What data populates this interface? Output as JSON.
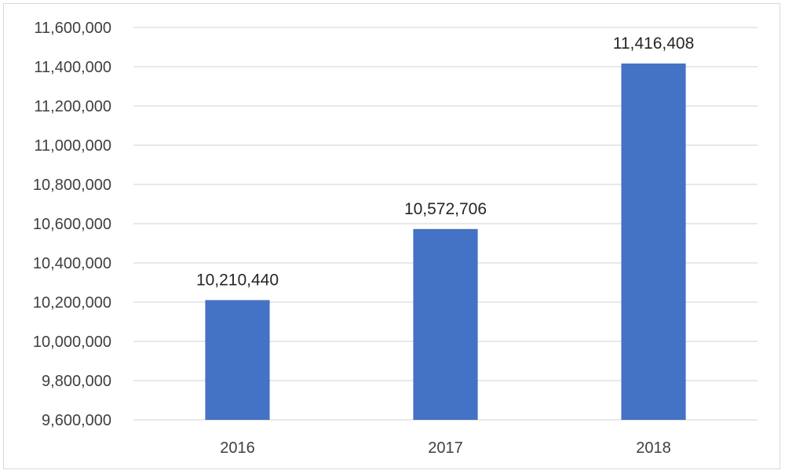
{
  "chart_data": {
    "type": "bar",
    "categories": [
      "2016",
      "2017",
      "2018"
    ],
    "values": [
      10210440,
      10572706,
      11416408
    ],
    "data_labels": [
      "10,210,440",
      "10,572,706",
      "11,416,408"
    ],
    "ylim": [
      9600000,
      11600000
    ],
    "y_ticks": [
      9600000,
      9800000,
      10000000,
      10200000,
      10400000,
      10600000,
      10800000,
      11000000,
      11200000,
      11400000,
      11600000
    ],
    "y_tick_labels": [
      "9,600,000",
      "9,800,000",
      "10,000,000",
      "10,200,000",
      "10,400,000",
      "10,600,000",
      "10,800,000",
      "11,000,000",
      "11,200,000",
      "11,400,000",
      "11,600,000"
    ],
    "grid": true,
    "legend": "none",
    "bar_color": "#4472c4",
    "title": "",
    "xlabel": "",
    "ylabel": ""
  }
}
